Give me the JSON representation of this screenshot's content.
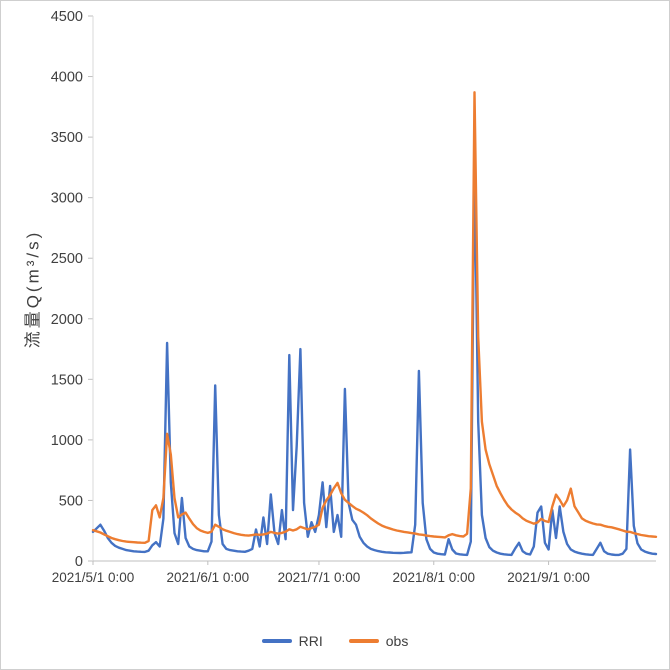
{
  "chart_data": {
    "type": "line",
    "title": "",
    "xlabel": "",
    "ylabel": "流量Q(m³/s)",
    "ylim": [
      0,
      4500
    ],
    "ytick_step": 500,
    "grid": false,
    "legend_position": "bottom",
    "x_total_points": 153,
    "xticks": [
      {
        "day": 0,
        "label": "2021/5/1 0:00"
      },
      {
        "day": 31,
        "label": "2021/6/1 0:00"
      },
      {
        "day": 61,
        "label": "2021/7/1 0:00"
      },
      {
        "day": 92,
        "label": "2021/8/1 0:00"
      },
      {
        "day": 123,
        "label": "2021/9/1 0:00"
      }
    ],
    "series": [
      {
        "name": "RRI",
        "color": "#4472C4",
        "values": [
          240,
          270,
          300,
          250,
          190,
          150,
          125,
          110,
          100,
          90,
          85,
          80,
          78,
          76,
          75,
          85,
          130,
          155,
          120,
          350,
          1800,
          650,
          230,
          140,
          520,
          190,
          120,
          100,
          90,
          85,
          80,
          80,
          160,
          1450,
          380,
          140,
          100,
          90,
          85,
          80,
          78,
          76,
          85,
          100,
          260,
          120,
          360,
          140,
          550,
          230,
          140,
          420,
          180,
          1700,
          420,
          950,
          1750,
          480,
          200,
          320,
          240,
          380,
          650,
          280,
          620,
          240,
          380,
          200,
          1420,
          480,
          340,
          300,
          200,
          150,
          120,
          100,
          90,
          82,
          76,
          72,
          70,
          68,
          67,
          66,
          68,
          70,
          72,
          300,
          1570,
          480,
          180,
          100,
          70,
          60,
          56,
          54,
          180,
          95,
          62,
          55,
          52,
          50,
          160,
          3330,
          1150,
          380,
          190,
          115,
          85,
          70,
          60,
          55,
          52,
          50,
          105,
          150,
          80,
          60,
          54,
          120,
          400,
          450,
          150,
          95,
          420,
          190,
          450,
          240,
          140,
          95,
          78,
          68,
          60,
          55,
          52,
          50,
          100,
          150,
          80,
          60,
          54,
          50,
          50,
          60,
          100,
          920,
          290,
          145,
          95,
          78,
          68,
          60,
          58
        ]
      },
      {
        "name": "obs",
        "color": "#ED7D31",
        "values": [
          255,
          245,
          235,
          220,
          205,
          190,
          180,
          172,
          165,
          160,
          158,
          155,
          153,
          151,
          150,
          165,
          420,
          460,
          360,
          520,
          1050,
          880,
          520,
          360,
          385,
          400,
          350,
          305,
          272,
          252,
          240,
          232,
          242,
          300,
          282,
          262,
          250,
          240,
          230,
          222,
          216,
          212,
          210,
          214,
          220,
          216,
          220,
          226,
          240,
          232,
          226,
          232,
          242,
          262,
          252,
          262,
          282,
          272,
          262,
          272,
          282,
          300,
          440,
          500,
          545,
          600,
          645,
          560,
          505,
          480,
          455,
          432,
          418,
          400,
          378,
          352,
          330,
          310,
          292,
          280,
          270,
          260,
          252,
          246,
          240,
          236,
          230,
          226,
          220,
          216,
          210,
          206,
          202,
          200,
          197,
          195,
          212,
          222,
          212,
          206,
          202,
          225,
          600,
          3870,
          1850,
          1150,
          920,
          800,
          710,
          620,
          560,
          505,
          458,
          425,
          400,
          380,
          352,
          332,
          320,
          308,
          318,
          348,
          330,
          322,
          450,
          548,
          505,
          452,
          502,
          598,
          452,
          402,
          352,
          332,
          320,
          310,
          302,
          300,
          290,
          282,
          278,
          270,
          262,
          252,
          242,
          240,
          230,
          222,
          215,
          210,
          205,
          202,
          200
        ]
      }
    ]
  }
}
